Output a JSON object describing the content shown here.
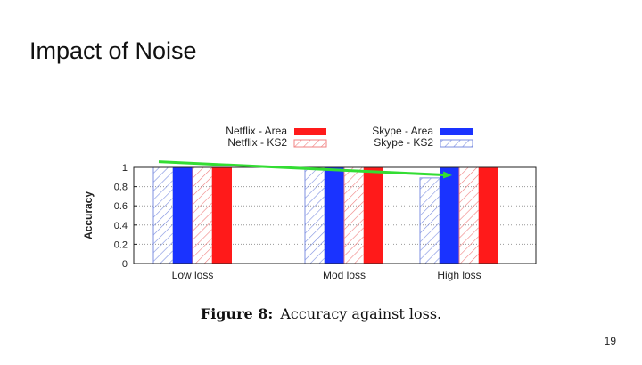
{
  "slide": {
    "title": "Impact of Noise",
    "page_number": "19"
  },
  "figure": {
    "caption_label": "Figure 8:",
    "caption_text": "Accuracy against loss."
  },
  "colors": {
    "netflix": "#ff1a1a",
    "skype": "#1a33ff",
    "arrow": "#33dd33",
    "grid": "#999999"
  },
  "chart_data": {
    "type": "bar",
    "title": "",
    "xlabel": "",
    "ylabel": "Accuracy",
    "ylim": [
      0,
      1
    ],
    "yticks": [
      "0",
      "0.2",
      "0.4",
      "0.6",
      "0.8",
      "1"
    ],
    "categories": [
      "Low loss",
      "Mod loss",
      "High loss"
    ],
    "legend_position": "top",
    "series": [
      {
        "name": "Skype - KS2",
        "color": "#7d8fe0",
        "hatched": true,
        "values": [
          1.0,
          1.0,
          0.89
        ]
      },
      {
        "name": "Skype - Area",
        "color": "#1a33ff",
        "hatched": false,
        "values": [
          1.0,
          1.0,
          1.0
        ]
      },
      {
        "name": "Netflix - KS2",
        "color": "#f08080",
        "hatched": true,
        "values": [
          1.0,
          1.0,
          1.0
        ]
      },
      {
        "name": "Netflix - Area",
        "color": "#ff1a1a",
        "hatched": false,
        "values": [
          1.0,
          1.0,
          1.0
        ]
      }
    ],
    "legend_order": [
      "Netflix - Area",
      "Netflix - KS2",
      "Skype - Area",
      "Skype - KS2"
    ],
    "annotation": {
      "type": "arrow",
      "from": {
        "x": "Low loss",
        "y": 1.05
      },
      "to": {
        "x": "High loss",
        "y": 0.9
      }
    }
  }
}
